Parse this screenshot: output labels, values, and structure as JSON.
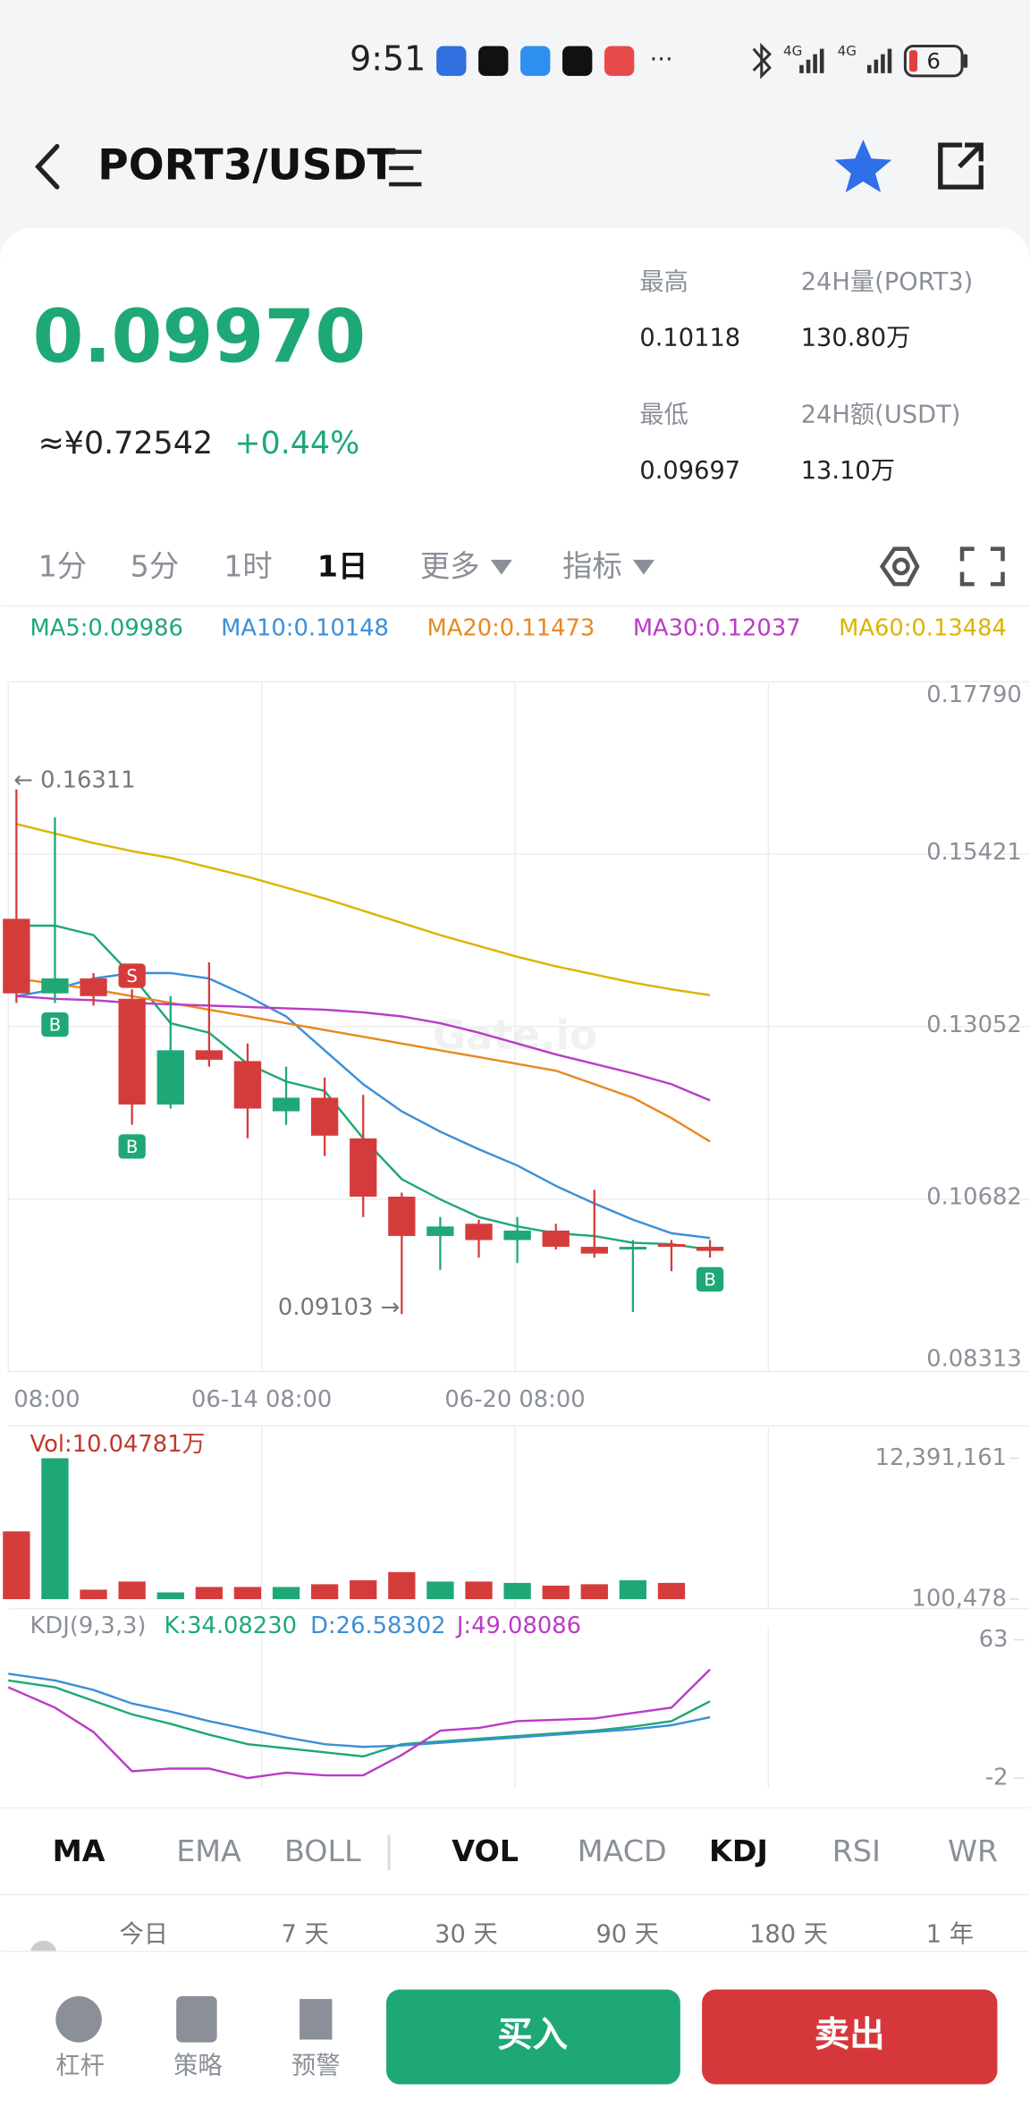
{
  "status_bar": {
    "time": "9:51",
    "battery": "6"
  },
  "header": {
    "pair": "PORT3/USDT"
  },
  "ticker": {
    "price": "0.09970",
    "cny": "≈¥0.72542",
    "change": "+0.44%",
    "stats": [
      {
        "label": "最高",
        "value": "0.10118"
      },
      {
        "label": "24H量(PORT3)",
        "value": "130.80万"
      },
      {
        "label": "最低",
        "value": "0.09697"
      },
      {
        "label": "24H额(USDT)",
        "value": "13.10万"
      }
    ]
  },
  "interval_tabs": [
    "1分",
    "5分",
    "1时",
    "1日",
    "更多",
    "指标"
  ],
  "active_interval": 3,
  "ma_legend": [
    {
      "label": "MA5:0.09986",
      "color": "#1ea876"
    },
    {
      "label": "MA10:0.10148",
      "color": "#3b8fd8"
    },
    {
      "label": "MA20:0.11473",
      "color": "#e8891f"
    },
    {
      "label": "MA30:0.12037",
      "color": "#b93cc6"
    },
    {
      "label": "MA60:0.13484",
      "color": "#dcb400"
    }
  ],
  "price_chart": {
    "type": "candlestick",
    "ylim": [
      0.08313,
      0.1779
    ],
    "yticks": [
      {
        "value": 0.1779,
        "label": "0.17790"
      },
      0.15421,
      0.13052,
      0.10682,
      0.08313
    ],
    "up_color": "#1ea876",
    "down_color": "#d43c3c",
    "open": [
      0.14532,
      0.13508,
      0.13713,
      0.13433,
      0.11981,
      0.12726,
      0.12577,
      0.11888,
      0.12074,
      0.11516,
      0.10715,
      0.10175,
      0.10343,
      0.10119,
      0.10249,
      0.10026,
      0.09989,
      0.10063,
      0.10026
    ],
    "close": [
      0.13508,
      0.13713,
      0.1347,
      0.11981,
      0.12726,
      0.12596,
      0.11925,
      0.12074,
      0.11553,
      0.10715,
      0.10175,
      0.10305,
      0.10119,
      0.10249,
      0.10026,
      0.09933,
      0.10026,
      0.10026,
      0.0997
    ],
    "high": [
      0.16311,
      0.15928,
      0.13787,
      0.13564,
      0.1347,
      0.13936,
      0.12819,
      0.12502,
      0.12353,
      0.12112,
      0.10771,
      0.10436,
      0.10399,
      0.10436,
      0.10343,
      0.10808,
      0.10119,
      0.10119,
      0.10119
    ],
    "low": [
      0.13377,
      0.13377,
      0.1334,
      0.11702,
      0.11925,
      0.12502,
      0.11516,
      0.11702,
      0.11274,
      0.10436,
      0.09103,
      0.09709,
      0.09877,
      0.09803,
      0.09989,
      0.09877,
      0.09132,
      0.09691,
      0.09877
    ],
    "ma_series": [
      {
        "color": "#1ea876",
        "values": [
          0.14438,
          0.14438,
          0.14308,
          0.13749,
          0.13098,
          0.12967,
          0.12539,
          0.12297,
          0.12167,
          0.11515,
          0.10956,
          0.10677,
          0.10435,
          0.10305,
          0.10212,
          0.10174,
          0.10081,
          0.10063,
          0.09986
        ]
      },
      {
        "color": "#3b8fd8",
        "values": [
          0.1347,
          0.13563,
          0.13712,
          0.13787,
          0.13787,
          0.13712,
          0.1347,
          0.13191,
          0.12725,
          0.1226,
          0.11887,
          0.11608,
          0.11366,
          0.11143,
          0.10863,
          0.10621,
          0.10398,
          0.10212,
          0.10148
        ]
      },
      {
        "color": "#e8891f",
        "values": [
          0.13712,
          0.13638,
          0.13563,
          0.1347,
          0.13377,
          0.13284,
          0.13191,
          0.13098,
          0.13005,
          0.12912,
          0.12818,
          0.12725,
          0.12632,
          0.12539,
          0.12446,
          0.1226,
          0.12074,
          0.11794,
          0.11473
        ]
      },
      {
        "color": "#b93cc6",
        "values": [
          0.1347,
          0.13433,
          0.13414,
          0.13377,
          0.13358,
          0.1334,
          0.13321,
          0.13302,
          0.13284,
          0.13247,
          0.13191,
          0.13098,
          0.12967,
          0.12818,
          0.12669,
          0.12539,
          0.12409,
          0.1226,
          0.12037
        ]
      },
      {
        "color": "#dcb400",
        "values": [
          0.15835,
          0.15705,
          0.15574,
          0.15462,
          0.15369,
          0.15239,
          0.15109,
          0.1496,
          0.14811,
          0.14643,
          0.14476,
          0.14308,
          0.14159,
          0.1401,
          0.1388,
          0.13768,
          0.13656,
          0.13563,
          0.13484
        ]
      }
    ],
    "time_labels": [
      "08:00",
      "06-14 08:00",
      "06-20 08:00"
    ],
    "high_label": "← 0.16311",
    "low_label": "0.09103 →",
    "watermark": "Gate.io",
    "signals": [
      {
        "label": "B",
        "index": 1,
        "side": "below"
      },
      {
        "label": "S",
        "index": 3,
        "side": "above"
      },
      {
        "label": "B",
        "index": 3,
        "side": "below"
      },
      {
        "label": "B",
        "index": 18,
        "side": "below"
      }
    ]
  },
  "volume_chart": {
    "label": "Vol:10.04781万",
    "ylim": [
      100478,
      12391161
    ],
    "yticks": [
      {
        "value": 12391161,
        "label": "12,391,161"
      },
      {
        "value": 100478,
        "label": "100,478"
      }
    ],
    "values": [
      6010000,
      12391161,
      928000,
      1637000,
      691000,
      1164000,
      1164000,
      1164000,
      1401000,
      1755000,
      2464000,
      1637000,
      1637000,
      1519000,
      1282000,
      1401000,
      1755000,
      1519000,
      100478
    ]
  },
  "kdj_chart": {
    "title": "KDJ(9,3,3)",
    "ylim": [
      -2,
      63
    ],
    "yticks": [
      63,
      -2
    ],
    "series": [
      {
        "label": "K:34.08230",
        "color": "#1ea876",
        "values": [
          43.88,
          40.69,
          34.32,
          27.95,
          23.49,
          18.39,
          13.93,
          12.02,
          10.1,
          8.19,
          13.93,
          15.2,
          16.48,
          17.75,
          19.03,
          20.3,
          22.21,
          24.76,
          34.0823
        ]
      },
      {
        "label": "D:26.58302",
        "color": "#3b8fd8",
        "values": [
          47.07,
          43.88,
          39.42,
          33.05,
          29.22,
          24.76,
          20.94,
          17.11,
          13.93,
          12.65,
          13.29,
          14.57,
          15.84,
          17.11,
          18.39,
          19.66,
          20.94,
          22.85,
          26.58302
        ]
      },
      {
        "label": "J:49.08086",
        "color": "#b93cc6",
        "values": [
          40.69,
          31.13,
          19.66,
          1.18,
          2.46,
          2.46,
          -2,
          0.54,
          -0.73,
          -0.73,
          8.83,
          20.3,
          21.58,
          24.76,
          25.4,
          26.04,
          28.59,
          31.13,
          49.08086
        ]
      }
    ]
  },
  "indicator_tabs": {
    "main": [
      "MA",
      "EMA",
      "BOLL"
    ],
    "sub": [
      "VOL",
      "MACD",
      "KDJ",
      "RSI",
      "WR"
    ],
    "main_active": [
      0
    ],
    "sub_active": [
      0,
      2
    ]
  },
  "ranges": [
    "今日",
    "7 天",
    "30 天",
    "90 天",
    "180 天",
    "1 年"
  ],
  "bottom_bar": {
    "tools": [
      "杠杆",
      "策略",
      "预警"
    ],
    "buy": "买入",
    "sell": "卖出"
  }
}
